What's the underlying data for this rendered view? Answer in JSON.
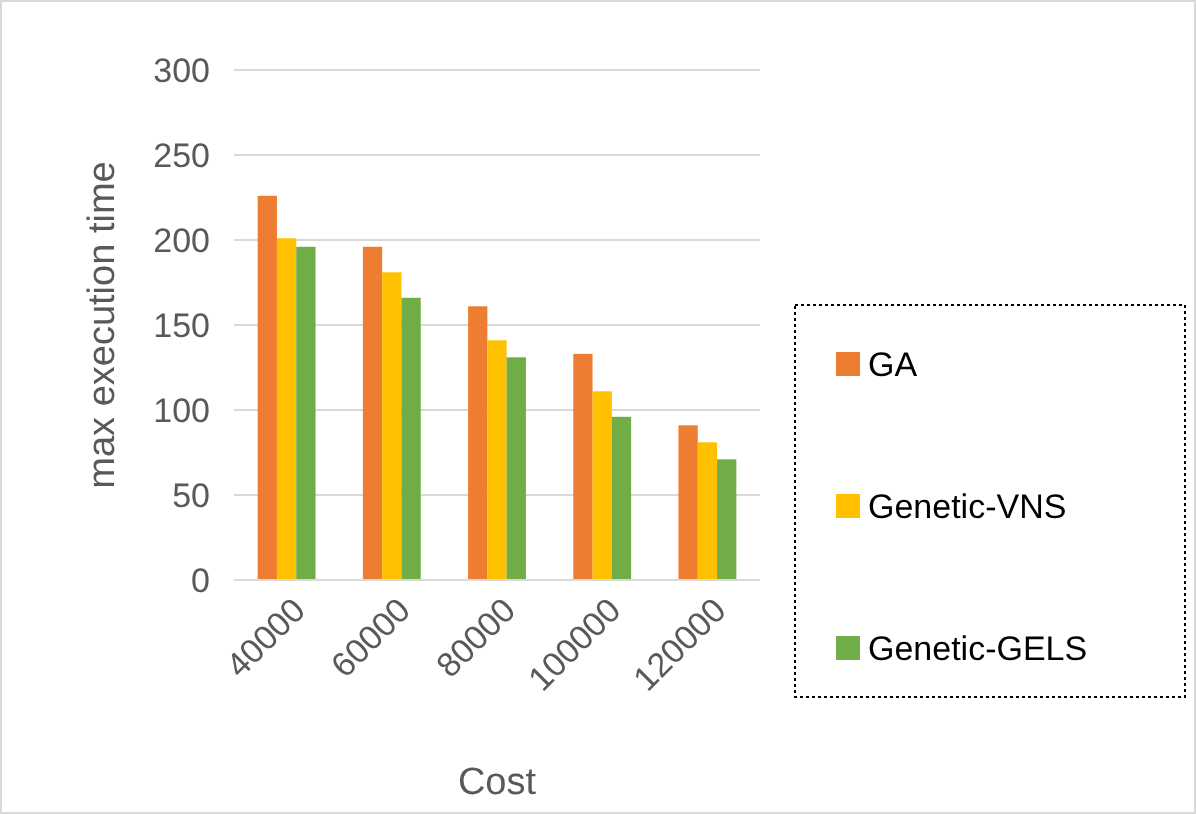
{
  "chart_data": {
    "type": "bar",
    "xlabel": "Cost",
    "ylabel": "max execution time",
    "categories": [
      "40000",
      "60000",
      "80000",
      "100000",
      "120000"
    ],
    "series": [
      {
        "name": "GA",
        "color": "#ed7d31",
        "values": [
          226,
          196,
          161,
          133,
          91
        ]
      },
      {
        "name": "Genetic-VNS",
        "color": "#ffc000",
        "values": [
          201,
          181,
          141,
          111,
          81
        ]
      },
      {
        "name": "Genetic-GELS",
        "color": "#70ad47",
        "values": [
          196,
          166,
          131,
          96,
          71
        ]
      }
    ],
    "ylim": [
      0,
      300
    ],
    "yticks": [
      0,
      50,
      100,
      150,
      200,
      250,
      300
    ],
    "grid": "y",
    "legend": "right"
  }
}
